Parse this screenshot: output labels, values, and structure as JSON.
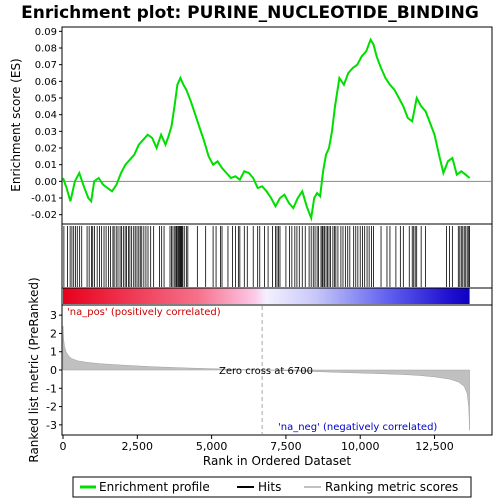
{
  "chart_data": {
    "type": "line",
    "title": "Enrichment plot: PURINE_NUCLEOTIDE_BINDING",
    "top_panel": {
      "ylabel": "Enrichment score (ES)",
      "ylim": [
        -0.025,
        0.092
      ],
      "yticks": [
        -0.02,
        -0.01,
        0.0,
        0.01,
        0.02,
        0.03,
        0.04,
        0.05,
        0.06,
        0.07,
        0.08,
        0.09
      ],
      "ytick_labels": [
        "-0.02",
        "-0.01",
        "0.00",
        "0.01",
        "0.02",
        "0.03",
        "0.04",
        "0.05",
        "0.06",
        "0.07",
        "0.08",
        "0.09"
      ],
      "line_color": "#00dd00",
      "series": [
        {
          "name": "Enrichment profile",
          "x": [
            0,
            120,
            250,
            400,
            550,
            700,
            850,
            950,
            1050,
            1200,
            1350,
            1500,
            1650,
            1800,
            1950,
            2100,
            2250,
            2400,
            2550,
            2700,
            2850,
            3000,
            3150,
            3300,
            3450,
            3550,
            3650,
            3750,
            3850,
            3950,
            4050,
            4150,
            4300,
            4450,
            4600,
            4750,
            4900,
            5050,
            5200,
            5350,
            5500,
            5650,
            5800,
            5950,
            6100,
            6250,
            6400,
            6550,
            6700,
            6850,
            7000,
            7150,
            7300,
            7450,
            7600,
            7750,
            7900,
            8050,
            8200,
            8350,
            8450,
            8550,
            8650,
            8750,
            8850,
            8950,
            9050,
            9150,
            9300,
            9450,
            9600,
            9750,
            9900,
            10050,
            10200,
            10350,
            10450,
            10550,
            10700,
            10850,
            11000,
            11150,
            11300,
            11450,
            11600,
            11750,
            11900,
            12050,
            12200,
            12350,
            12500,
            12650,
            12800,
            12950,
            13100,
            13250,
            13400,
            13550,
            13680
          ],
          "values": [
            0.002,
            -0.004,
            -0.012,
            0.0,
            0.005,
            -0.003,
            -0.01,
            -0.012,
            0.0,
            0.002,
            -0.002,
            -0.004,
            -0.006,
            -0.002,
            0.005,
            0.01,
            0.013,
            0.016,
            0.022,
            0.025,
            0.028,
            0.026,
            0.02,
            0.028,
            0.022,
            0.027,
            0.033,
            0.045,
            0.058,
            0.062,
            0.058,
            0.055,
            0.048,
            0.04,
            0.032,
            0.024,
            0.015,
            0.01,
            0.012,
            0.008,
            0.005,
            0.002,
            0.003,
            0.001,
            0.006,
            0.005,
            0.002,
            -0.004,
            -0.003,
            -0.006,
            -0.01,
            -0.015,
            -0.01,
            -0.008,
            -0.013,
            -0.016,
            -0.01,
            -0.006,
            -0.015,
            -0.022,
            -0.01,
            -0.007,
            -0.009,
            0.006,
            0.016,
            0.02,
            0.03,
            0.045,
            0.062,
            0.058,
            0.065,
            0.068,
            0.07,
            0.075,
            0.078,
            0.085,
            0.082,
            0.075,
            0.068,
            0.062,
            0.058,
            0.055,
            0.05,
            0.045,
            0.038,
            0.036,
            0.05,
            0.045,
            0.042,
            0.035,
            0.028,
            0.016,
            0.005,
            0.012,
            0.014,
            0.004,
            0.006,
            0.004,
            0.002
          ]
        }
      ]
    },
    "hits_panel": {
      "name": "Hits",
      "hit_ranks": [
        30,
        150,
        240,
        300,
        360,
        420,
        480,
        560,
        630,
        810,
        880,
        960,
        1000,
        1060,
        1150,
        1230,
        1300,
        1380,
        1450,
        1530,
        1600,
        1680,
        1720,
        1790,
        1850,
        1920,
        1970,
        2030,
        2090,
        2140,
        2200,
        2250,
        2310,
        2380,
        2430,
        2490,
        2550,
        2600,
        2650,
        2720,
        2790,
        2860,
        2950,
        3050,
        3250,
        3320,
        3400,
        3600,
        3650,
        3700,
        3760,
        3800,
        3820,
        3860,
        3880,
        3910,
        3940,
        3970,
        4000,
        4030,
        4080,
        4150,
        4200,
        4520,
        4800,
        5050,
        5150,
        5300,
        5350,
        5550,
        5700,
        5800,
        5900,
        5950,
        6100,
        6200,
        6400,
        6550,
        6620,
        6780,
        6900,
        7050,
        7150,
        7200,
        7250,
        7300,
        7500,
        7620,
        7700,
        7800,
        7870,
        7950,
        8050,
        8150,
        8280,
        8350,
        8420,
        8480,
        8550,
        8600,
        8680,
        8720,
        8750,
        8800,
        8850,
        8900,
        8950,
        9000,
        9080,
        9130,
        9180,
        9250,
        9350,
        9420,
        9500,
        9580,
        9650,
        9780,
        9850,
        9920,
        10000,
        10080,
        10150,
        10230,
        10300,
        10380,
        10450,
        10700,
        10900,
        11000,
        11200,
        11350,
        11450,
        11650,
        11750,
        11800,
        11850,
        11900,
        12050,
        12200,
        12900,
        13000,
        13100,
        13300,
        13350,
        13400,
        13450,
        13500,
        13550,
        13600,
        13650,
        13680
      ],
      "gradient_labels": {
        "positive": "'na_pos' (positively correlated)",
        "negative": "'na_neg' (negatively correlated)"
      }
    },
    "metric_panel": {
      "name": "Ranking metric scores",
      "ylabel": "Ranked list metric (PreRanked)",
      "ylim": [
        -3.5,
        3.5
      ],
      "yticks": [
        -3,
        -2,
        -1,
        0,
        1,
        2,
        3
      ],
      "ytick_labels": [
        "-3",
        "-2",
        "-1",
        "0",
        "1",
        "2",
        "3"
      ],
      "x": [
        0,
        20,
        50,
        100,
        200,
        300,
        500,
        800,
        1200,
        2000,
        3000,
        4000,
        5000,
        6000,
        6700,
        7500,
        8500,
        9500,
        10500,
        11500,
        12000,
        12500,
        13000,
        13300,
        13500,
        13600,
        13650,
        13680
      ],
      "values": [
        2.4,
        1.7,
        1.3,
        1.0,
        0.75,
        0.62,
        0.5,
        0.42,
        0.35,
        0.27,
        0.18,
        0.12,
        0.07,
        0.03,
        0.0,
        -0.04,
        -0.09,
        -0.14,
        -0.19,
        -0.25,
        -0.3,
        -0.38,
        -0.5,
        -0.65,
        -0.9,
        -1.3,
        -2.0,
        -3.3
      ],
      "zero_cross_label": "Zero cross at 6700",
      "zero_cross": 6700,
      "fill_color": "#c0c0c0"
    },
    "xaxis": {
      "xlabel": "Rank in Ordered Dataset",
      "xlim": [
        0,
        14400
      ],
      "xticks": [
        0,
        2500,
        5000,
        7500,
        10000,
        12500
      ],
      "xtick_labels": [
        "0",
        "2,500",
        "5,000",
        "7,500",
        "10,000",
        "12,500"
      ]
    },
    "legend": {
      "placement": "bottom",
      "entries": [
        {
          "label": "Enrichment profile",
          "color": "#00dd00",
          "kind": "line"
        },
        {
          "label": "Hits",
          "color": "#000000",
          "kind": "line"
        },
        {
          "label": "Ranking metric scores",
          "color": "#c0c0c0",
          "kind": "line"
        }
      ]
    }
  }
}
